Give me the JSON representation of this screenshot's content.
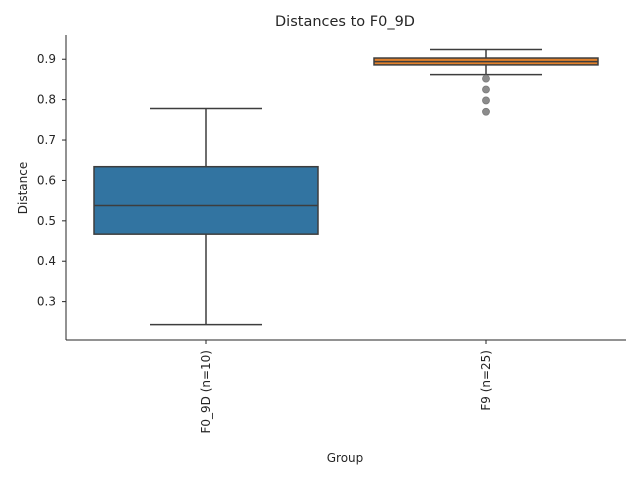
{
  "chart_data": {
    "type": "box",
    "title": "Distances to F0_9D",
    "xlabel": "Group",
    "ylabel": "Distance",
    "ylim": [
      0.205,
      0.96
    ],
    "yticks": [
      0.3,
      0.4,
      0.5,
      0.6,
      0.7,
      0.8,
      0.9
    ],
    "ytick_labels": [
      "0.3",
      "0.4",
      "0.5",
      "0.6",
      "0.7",
      "0.8",
      "0.9"
    ],
    "categories": [
      "F0_9D (n=10)",
      "F9 (n=25)"
    ],
    "boxes": [
      {
        "category": "F0_9D (n=10)",
        "whisker_low": 0.243,
        "q1": 0.467,
        "median": 0.538,
        "q3": 0.634,
        "whisker_high": 0.778,
        "outliers": [],
        "color": "#3274a1"
      },
      {
        "category": "F9 (n=25)",
        "whisker_low": 0.862,
        "q1": 0.886,
        "median": 0.894,
        "q3": 0.903,
        "whisker_high": 0.924,
        "outliers": [
          0.77,
          0.798,
          0.825,
          0.852
        ],
        "color": "#e1812c"
      }
    ],
    "grid": false,
    "spines": [
      "left",
      "bottom"
    ]
  }
}
